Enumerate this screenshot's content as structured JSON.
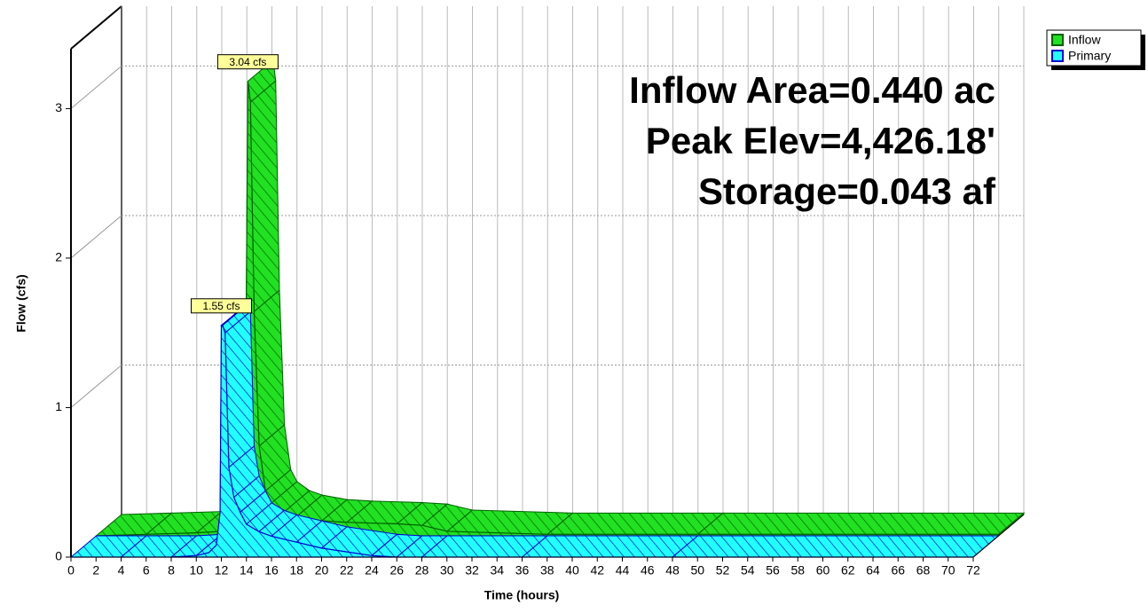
{
  "chart_data": {
    "type": "area3d",
    "x_label": "Time (hours)",
    "y_label": "Flow (cfs)",
    "x": [
      0,
      4,
      8,
      10,
      11,
      11.6,
      11.9,
      12.0,
      12.1,
      12.3,
      12.6,
      13,
      13.5,
      14,
      15,
      16,
      18,
      20,
      24,
      26,
      28,
      36,
      48,
      72
    ],
    "series": [
      {
        "name": "Inflow",
        "color": "#22e022",
        "hatch": "#006000",
        "peak_label": "3.04 cfs",
        "values": [
          0,
          0.01,
          0.02,
          0.03,
          0.04,
          0.06,
          0.5,
          1.9,
          3.04,
          2.9,
          1.5,
          0.6,
          0.3,
          0.22,
          0.16,
          0.13,
          0.1,
          0.09,
          0.08,
          0.07,
          0.03,
          0.01,
          0.01,
          0.01
        ]
      },
      {
        "name": "Primary",
        "color": "#22ffff",
        "hatch": "#0000d0",
        "peak_label": "1.55 cfs",
        "values": [
          0,
          0,
          0,
          0.01,
          0.03,
          0.08,
          0.3,
          1.55,
          1.55,
          1.5,
          0.6,
          0.4,
          0.3,
          0.22,
          0.17,
          0.14,
          0.1,
          0.06,
          0.01,
          0,
          0,
          0,
          0,
          0
        ]
      }
    ],
    "annotations": [
      "Inflow Area=0.440 ac",
      "Peak Elev=4,426.18'",
      "Storage=0.043 af"
    ],
    "xlim": [
      0,
      72
    ],
    "ylim": [
      0,
      3.4
    ],
    "xticks": [
      0,
      2,
      4,
      6,
      8,
      10,
      12,
      14,
      16,
      18,
      20,
      22,
      24,
      26,
      28,
      30,
      32,
      34,
      36,
      38,
      40,
      42,
      44,
      46,
      48,
      50,
      52,
      54,
      56,
      58,
      60,
      62,
      64,
      66,
      68,
      70,
      72
    ],
    "yticks": [
      0,
      1,
      2,
      3
    ],
    "grid": true,
    "legend": "top-right"
  }
}
